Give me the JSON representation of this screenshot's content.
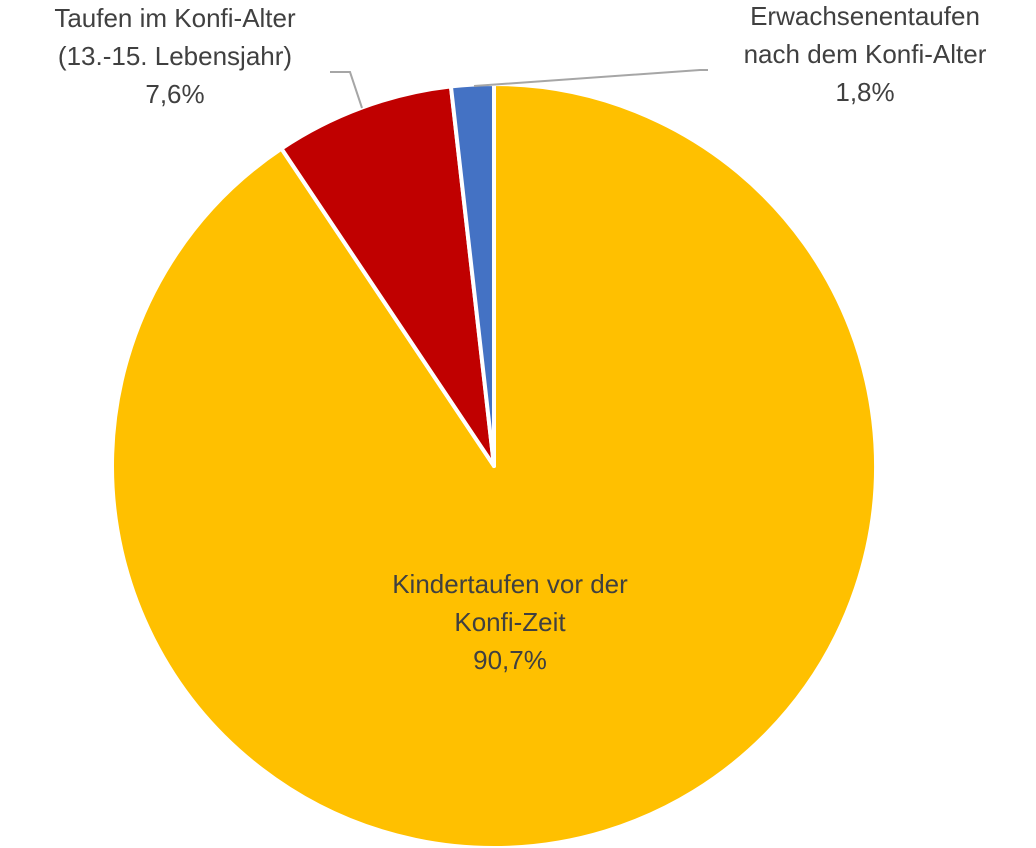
{
  "chart_data": {
    "type": "pie",
    "categories": [
      [
        "Kindertaufen vor der",
        "Konfi-Zeit"
      ],
      [
        "Taufen im Konfi-Alter",
        "(13.-15. Lebensjahr)"
      ],
      [
        "Erwachsenentaufen",
        "nach dem Konfi-Alter"
      ]
    ],
    "values": [
      90.7,
      7.6,
      1.8
    ],
    "value_labels": [
      "90,7%",
      "7,6%",
      "1,8%"
    ],
    "colors": [
      "#FFC000",
      "#C00000",
      "#4472C4"
    ]
  }
}
